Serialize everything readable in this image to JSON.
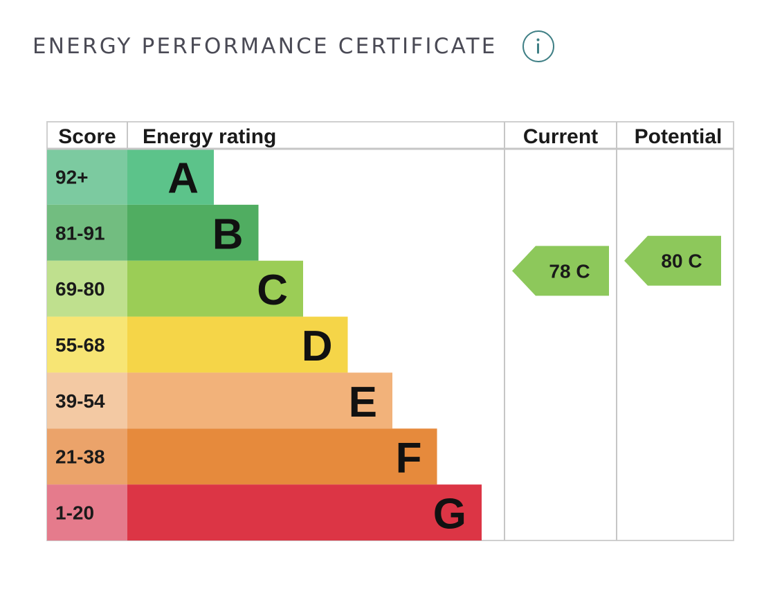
{
  "header": {
    "title": "ENERGY PERFORMANCE CERTIFICATE",
    "info_icon": "info-icon",
    "accent_color": "#3f7f85"
  },
  "chart_data": {
    "type": "table",
    "columns": [
      "Score",
      "Energy rating",
      "Current",
      "Potential"
    ],
    "bands": [
      {
        "letter": "A",
        "score": "92+",
        "color": "#5cc38a",
        "score_color": "#7ccaa0"
      },
      {
        "letter": "B",
        "score": "81-91",
        "color": "#50ad61",
        "score_color": "#72bd80"
      },
      {
        "letter": "C",
        "score": "69-80",
        "color": "#9bcd56",
        "score_color": "#bfe08e"
      },
      {
        "letter": "D",
        "score": "55-68",
        "color": "#f5d548",
        "score_color": "#f7e574"
      },
      {
        "letter": "E",
        "score": "39-54",
        "color": "#f2b27a",
        "score_color": "#f3c9a3"
      },
      {
        "letter": "F",
        "score": "21-38",
        "color": "#e68a3c",
        "score_color": "#eba36a"
      },
      {
        "letter": "G",
        "score": "1-20",
        "color": "#dc3545",
        "score_color": "#e57b8c"
      }
    ],
    "current": {
      "score": 78,
      "band": "C",
      "label": "78 C",
      "color": "#8dc85b"
    },
    "potential": {
      "score": 80,
      "band": "C",
      "label": "80 C",
      "color": "#8dc85b"
    }
  }
}
